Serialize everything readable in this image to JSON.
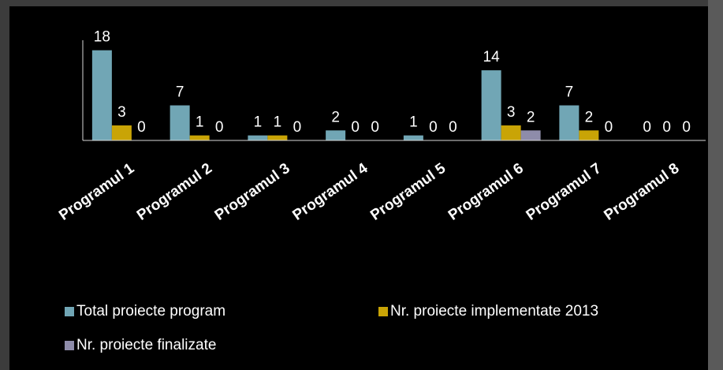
{
  "chart_data": {
    "type": "bar",
    "categories": [
      "Programul 1",
      "Programul 2",
      "Programul 3",
      "Programul 4",
      "Programul 5",
      "Programul 6",
      "Programul 7",
      "Programul 8"
    ],
    "series": [
      {
        "name": "Total proiecte program",
        "color": "#71a6b5",
        "values": [
          18,
          7,
          1,
          2,
          1,
          14,
          7,
          0
        ]
      },
      {
        "name": "Nr. proiecte implementate 2013",
        "color": "#c9a406",
        "values": [
          3,
          1,
          1,
          0,
          0,
          3,
          2,
          0
        ]
      },
      {
        "name": "Nr. proiecte finalizate",
        "color": "#8e8caa",
        "values": [
          0,
          0,
          0,
          0,
          0,
          2,
          0,
          0
        ]
      }
    ],
    "ylim": [
      0,
      20
    ]
  }
}
